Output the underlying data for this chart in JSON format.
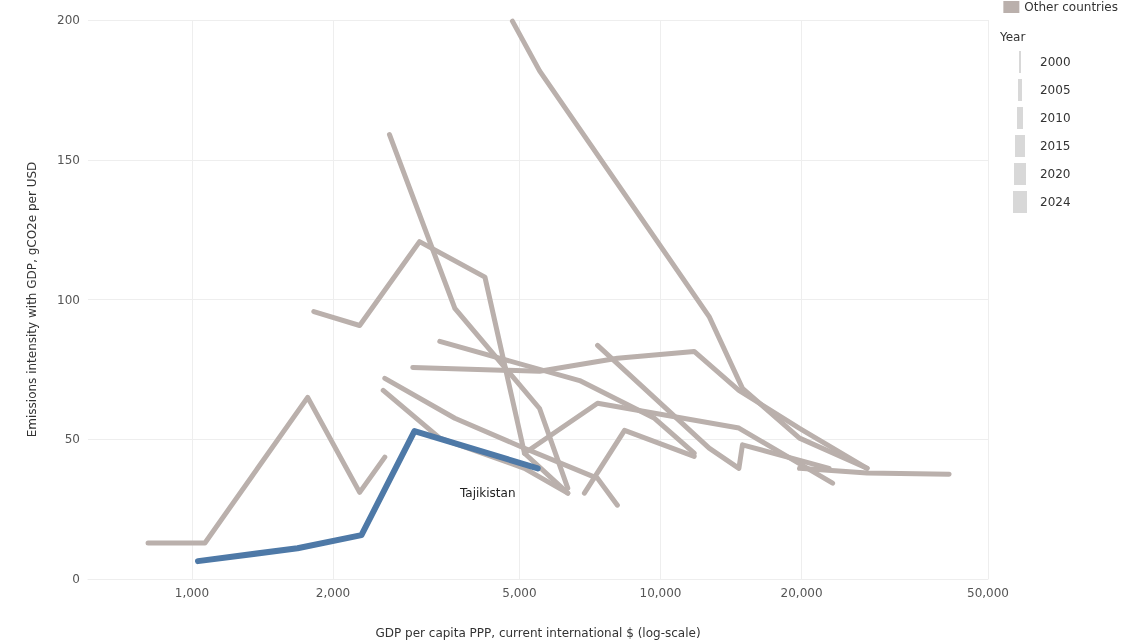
{
  "chart_data": {
    "type": "line",
    "xlabel": "GDP per capita PPP, current international $ (log-scale)",
    "ylabel": "Emissions intensity with GDP, gCO2e per USD",
    "log": "x",
    "xlim": [
      600,
      50000
    ],
    "xticks": [
      {
        "value": 1000,
        "label": "1,000"
      },
      {
        "value": 2000,
        "label": "2,000"
      },
      {
        "value": 5000,
        "label": "5,000"
      },
      {
        "value": 10000,
        "label": "10,000"
      },
      {
        "value": 20000,
        "label": "20,000"
      },
      {
        "value": 50000,
        "label": "50,000"
      }
    ],
    "ylim": [
      0,
      200
    ],
    "yticks": [
      0,
      50,
      100,
      150,
      200
    ],
    "grid": true,
    "legend": "top right",
    "legend_title": "Year",
    "annotations": [
      "2000",
      "2005",
      "2010",
      "2015",
      "2020",
      "2024",
      {
        "text": "Tajikistan",
        "x": 5470,
        "y": 39.6
      }
    ],
    "marker": "none",
    "series": [
      {
        "name": "Other countries",
        "color": "#bab0ac",
        "x": [
          806,
          1066,
          1766,
          2280,
          2580
        ],
        "values": [
          12.9,
          12.9,
          65,
          31,
          43.6
        ]
      },
      {
        "color": "#bab0ac",
        "x": [
          1820,
          2280,
          3060,
          4220,
          5125,
          6340
        ],
        "values": [
          95.7,
          90.7,
          120.7,
          108,
          45,
          30.7
        ]
      },
      {
        "color": "#bab0ac",
        "x": [
          2640,
          3640,
          5520,
          6340
        ],
        "values": [
          159,
          96.8,
          61,
          32.5
        ]
      },
      {
        "color": "#bab0ac",
        "x": [
          4830,
          5520,
          12700,
          14960,
          19800,
          27600
        ],
        "values": [
          199.6,
          181.8,
          93.9,
          68.2,
          50.4,
          39.6
        ]
      },
      {
        "color": "#bab0ac",
        "x": [
          3380,
          6720,
          9710,
          11800
        ],
        "values": [
          85,
          71,
          57.5,
          45
        ]
      },
      {
        "color": "#bab0ac",
        "x": [
          2960,
          5520,
          8090,
          11800,
          14700,
          19800,
          27600
        ],
        "values": [
          75.7,
          74.3,
          79,
          81.4,
          67.5,
          53.9,
          39.6
        ]
      },
      {
        "color": "#bab0ac",
        "x": [
          2580,
          3640,
          5125,
          7340,
          8090
        ],
        "values": [
          71.8,
          57.5,
          46.8,
          36,
          26.4
        ]
      },
      {
        "color": "#bab0ac",
        "x": [
          2560,
          3380,
          5125,
          6340
        ],
        "values": [
          67.5,
          50.4,
          39.6,
          30.7
        ]
      },
      {
        "color": "#bab0ac",
        "x": [
          7340,
          12700,
          14700,
          14960,
          22900
        ],
        "values": [
          83.6,
          46.8,
          39.6,
          48,
          39.6
        ]
      },
      {
        "color": "#bab0ac",
        "x": [
          5125,
          7340,
          14700,
          23300
        ],
        "values": [
          45,
          62.9,
          54,
          34.3
        ]
      },
      {
        "color": "#bab0ac",
        "x": [
          6880,
          8380,
          11800
        ],
        "values": [
          30.7,
          53.2,
          43.9
        ]
      },
      {
        "color": "#bab0ac",
        "x": [
          19800,
          27600,
          41300
        ],
        "values": [
          39.6,
          37.9,
          37.5
        ]
      },
      {
        "color": "#4e79a7",
        "x": [
          1030,
          1680,
          2300,
          2985,
          5470
        ],
        "values": [
          6.4,
          11,
          15.7,
          52.9,
          39.6
        ]
      }
    ]
  }
}
